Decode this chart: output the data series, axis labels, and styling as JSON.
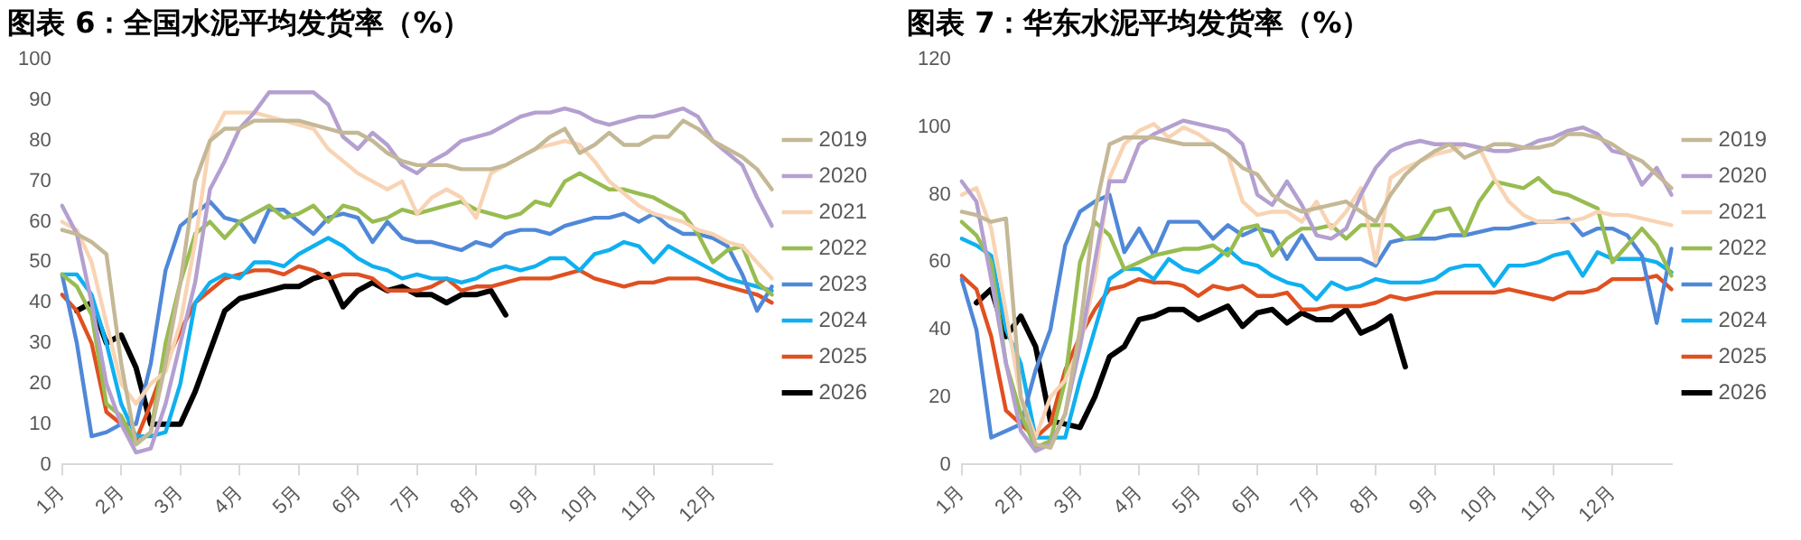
{
  "chart_data": [
    {
      "type": "line",
      "title": "图表 6：全国水泥平均发货率（%）",
      "categories": [
        "1月",
        null,
        null,
        null,
        "2月",
        null,
        null,
        null,
        "3月",
        null,
        null,
        null,
        "4月",
        null,
        null,
        null,
        "5月",
        null,
        null,
        null,
        "6月",
        null,
        null,
        null,
        "7月",
        null,
        null,
        null,
        "8月",
        null,
        null,
        null,
        "9月",
        null,
        null,
        null,
        "10月",
        null,
        null,
        null,
        "11月",
        null,
        null,
        null,
        "12月",
        null,
        null,
        null,
        null
      ],
      "ylim": [
        0,
        100
      ],
      "yticks": [
        0,
        10,
        20,
        30,
        40,
        50,
        60,
        70,
        80,
        90,
        100
      ],
      "grid": false,
      "legend": "right",
      "marker": "none",
      "line_style": "solid",
      "series": [
        {
          "name": "2019",
          "color": "#c4b896",
          "values": [
            58,
            57,
            55,
            52,
            25,
            5,
            8,
            25,
            45,
            70,
            80,
            83,
            83,
            85,
            85,
            85,
            85,
            84,
            83,
            82,
            82,
            80,
            77,
            75,
            74,
            74,
            74,
            73,
            73,
            73,
            74,
            76,
            78,
            81,
            83,
            77,
            79,
            82,
            79,
            79,
            81,
            81,
            85,
            83,
            80,
            78,
            76,
            73,
            68
          ]
        },
        {
          "name": "2020",
          "color": "#b4a0d0",
          "values": [
            64,
            57,
            40,
            20,
            10,
            3,
            4,
            15,
            30,
            45,
            68,
            75,
            83,
            87,
            92,
            92,
            92,
            92,
            89,
            81,
            78,
            82,
            79,
            74,
            72,
            75,
            77,
            80,
            81,
            82,
            84,
            86,
            87,
            87,
            88,
            87,
            85,
            84,
            85,
            86,
            86,
            87,
            88,
            86,
            80,
            77,
            74,
            66,
            59
          ]
        },
        {
          "name": "2021",
          "color": "#f8d4b4",
          "values": [
            60,
            58,
            50,
            35,
            20,
            15,
            20,
            23,
            35,
            55,
            80,
            87,
            87,
            87,
            86,
            85,
            84,
            83,
            78,
            75,
            72,
            70,
            68,
            70,
            62,
            66,
            68,
            66,
            61,
            72,
            74,
            76,
            78,
            79,
            80,
            79,
            75,
            70,
            67,
            64,
            62,
            61,
            60,
            58,
            57,
            55,
            54,
            50,
            46
          ]
        },
        {
          "name": "2022",
          "color": "#98bc50",
          "values": [
            47,
            44,
            37,
            15,
            12,
            5,
            8,
            30,
            45,
            57,
            60,
            56,
            60,
            62,
            64,
            61,
            62,
            64,
            60,
            64,
            63,
            60,
            61,
            63,
            62,
            63,
            64,
            65,
            63,
            62,
            61,
            62,
            65,
            64,
            70,
            72,
            70,
            68,
            68,
            67,
            66,
            64,
            62,
            57,
            50,
            53,
            54,
            45,
            42
          ]
        },
        {
          "name": "2023",
          "color": "#5088d8",
          "values": [
            47,
            30,
            7,
            8,
            10,
            10,
            25,
            48,
            59,
            62,
            65,
            61,
            60,
            55,
            63,
            63,
            60,
            57,
            61,
            62,
            61,
            55,
            60,
            56,
            55,
            55,
            54,
            53,
            55,
            54,
            57,
            58,
            58,
            57,
            59,
            60,
            61,
            61,
            62,
            60,
            62,
            59,
            57,
            57,
            56,
            54,
            47,
            38,
            44
          ]
        },
        {
          "name": "2024",
          "color": "#10b0f0",
          "values": [
            47,
            47,
            42,
            30,
            15,
            7,
            7,
            8,
            20,
            40,
            45,
            47,
            46,
            50,
            50,
            49,
            52,
            54,
            56,
            54,
            51,
            49,
            48,
            46,
            47,
            46,
            46,
            45,
            46,
            48,
            49,
            48,
            49,
            51,
            51,
            48,
            52,
            53,
            55,
            54,
            50,
            54,
            52,
            50,
            48,
            46,
            45,
            44,
            43
          ]
        },
        {
          "name": "2025",
          "color": "#e05020",
          "values": [
            42,
            38,
            30,
            13,
            10,
            6,
            15,
            25,
            33,
            40,
            43,
            46,
            47,
            48,
            48,
            47,
            49,
            48,
            46,
            47,
            47,
            46,
            43,
            43,
            43,
            44,
            46,
            43,
            44,
            44,
            45,
            46,
            46,
            46,
            47,
            48,
            46,
            45,
            44,
            45,
            45,
            46,
            46,
            46,
            45,
            44,
            43,
            42,
            40
          ]
        },
        {
          "name": "2026",
          "color": "#000000",
          "values": [
            null,
            38,
            40,
            30,
            32,
            24,
            10,
            10,
            10,
            18,
            28,
            38,
            41,
            42,
            43,
            44,
            44,
            46,
            47,
            39,
            43,
            45,
            43,
            44,
            42,
            42,
            40,
            42,
            42,
            43,
            37,
            null,
            null,
            null,
            null,
            null,
            null,
            null,
            null,
            null,
            null,
            null,
            null,
            null,
            null,
            null,
            null,
            null,
            null
          ]
        }
      ]
    },
    {
      "type": "line",
      "title": "图表 7：华东水泥平均发货率（%）",
      "categories": [
        "1月",
        null,
        null,
        null,
        "2月",
        null,
        null,
        null,
        "3月",
        null,
        null,
        null,
        "4月",
        null,
        null,
        null,
        "5月",
        null,
        null,
        null,
        "6月",
        null,
        null,
        null,
        "7月",
        null,
        null,
        null,
        "8月",
        null,
        null,
        null,
        "9月",
        null,
        null,
        null,
        "10月",
        null,
        null,
        null,
        "11月",
        null,
        null,
        null,
        "12月",
        null,
        null,
        null,
        null
      ],
      "ylim": [
        0,
        120
      ],
      "yticks": [
        0,
        20,
        40,
        60,
        80,
        100,
        120
      ],
      "grid": false,
      "legend": "right",
      "marker": "none",
      "line_style": "solid",
      "series": [
        {
          "name": "2019",
          "color": "#c4b896",
          "values": [
            75,
            74,
            72,
            73,
            20,
            6,
            5,
            15,
            40,
            75,
            95,
            97,
            97,
            97,
            96,
            95,
            95,
            95,
            92,
            88,
            86,
            80,
            77,
            75,
            76,
            77,
            78,
            75,
            72,
            80,
            86,
            90,
            93,
            95,
            91,
            93,
            95,
            95,
            94,
            94,
            95,
            98,
            98,
            97,
            95,
            92,
            90,
            86,
            82
          ]
        },
        {
          "name": "2020",
          "color": "#b4a0d0",
          "values": [
            84,
            78,
            55,
            30,
            10,
            4,
            6,
            15,
            35,
            60,
            84,
            84,
            95,
            98,
            100,
            102,
            101,
            100,
            99,
            95,
            80,
            77,
            84,
            77,
            68,
            67,
            70,
            80,
            88,
            93,
            95,
            96,
            95,
            95,
            95,
            94,
            93,
            93,
            94,
            96,
            97,
            99,
            100,
            98,
            93,
            92,
            83,
            88,
            80
          ]
        },
        {
          "name": "2021",
          "color": "#f8d4b4",
          "values": [
            80,
            82,
            70,
            45,
            20,
            8,
            20,
            25,
            35,
            55,
            85,
            95,
            99,
            101,
            97,
            100,
            98,
            95,
            92,
            78,
            74,
            75,
            75,
            72,
            78,
            70,
            75,
            82,
            60,
            85,
            88,
            90,
            92,
            93,
            95,
            94,
            85,
            78,
            74,
            72,
            72,
            72,
            73,
            75,
            74,
            74,
            73,
            72,
            71
          ]
        },
        {
          "name": "2022",
          "color": "#98bc50",
          "values": [
            72,
            68,
            60,
            30,
            15,
            5,
            7,
            25,
            60,
            72,
            68,
            58,
            60,
            62,
            63,
            64,
            64,
            65,
            62,
            70,
            71,
            62,
            67,
            70,
            70,
            71,
            67,
            71,
            71,
            71,
            67,
            68,
            75,
            76,
            68,
            78,
            84,
            83,
            82,
            85,
            81,
            80,
            78,
            76,
            60,
            65,
            70,
            65,
            56
          ]
        },
        {
          "name": "2023",
          "color": "#5088d8",
          "values": [
            55,
            40,
            8,
            10,
            12,
            28,
            40,
            65,
            75,
            78,
            80,
            63,
            70,
            62,
            72,
            72,
            72,
            67,
            71,
            68,
            70,
            69,
            61,
            68,
            61,
            61,
            61,
            61,
            59,
            66,
            67,
            67,
            67,
            68,
            68,
            69,
            70,
            70,
            71,
            72,
            72,
            73,
            68,
            70,
            70,
            68,
            62,
            42,
            64
          ]
        },
        {
          "name": "2024",
          "color": "#10b0f0",
          "values": [
            67,
            65,
            62,
            40,
            30,
            8,
            8,
            8,
            25,
            40,
            55,
            58,
            58,
            55,
            61,
            58,
            57,
            60,
            64,
            60,
            59,
            56,
            54,
            53,
            49,
            54,
            52,
            53,
            55,
            54,
            54,
            54,
            55,
            58,
            59,
            59,
            53,
            59,
            59,
            60,
            62,
            63,
            56,
            63,
            61,
            61,
            61,
            60,
            57
          ]
        },
        {
          "name": "2025",
          "color": "#e05020",
          "values": [
            56,
            52,
            38,
            16,
            12,
            8,
            12,
            28,
            38,
            46,
            52,
            53,
            55,
            54,
            54,
            53,
            50,
            53,
            52,
            53,
            50,
            50,
            51,
            46,
            46,
            47,
            47,
            47,
            48,
            50,
            49,
            50,
            51,
            51,
            51,
            51,
            51,
            52,
            51,
            50,
            49,
            51,
            51,
            52,
            55,
            55,
            55,
            56,
            52
          ]
        },
        {
          "name": "2026",
          "color": "#000000",
          "values": [
            null,
            48,
            52,
            38,
            44,
            35,
            13,
            12,
            11,
            20,
            32,
            35,
            43,
            44,
            46,
            46,
            43,
            45,
            47,
            41,
            45,
            46,
            42,
            45,
            43,
            43,
            46,
            39,
            41,
            44,
            29,
            null,
            null,
            null,
            null,
            null,
            null,
            null,
            null,
            null,
            null,
            null,
            null,
            null,
            null,
            null,
            null,
            null,
            null
          ]
        }
      ]
    }
  ]
}
